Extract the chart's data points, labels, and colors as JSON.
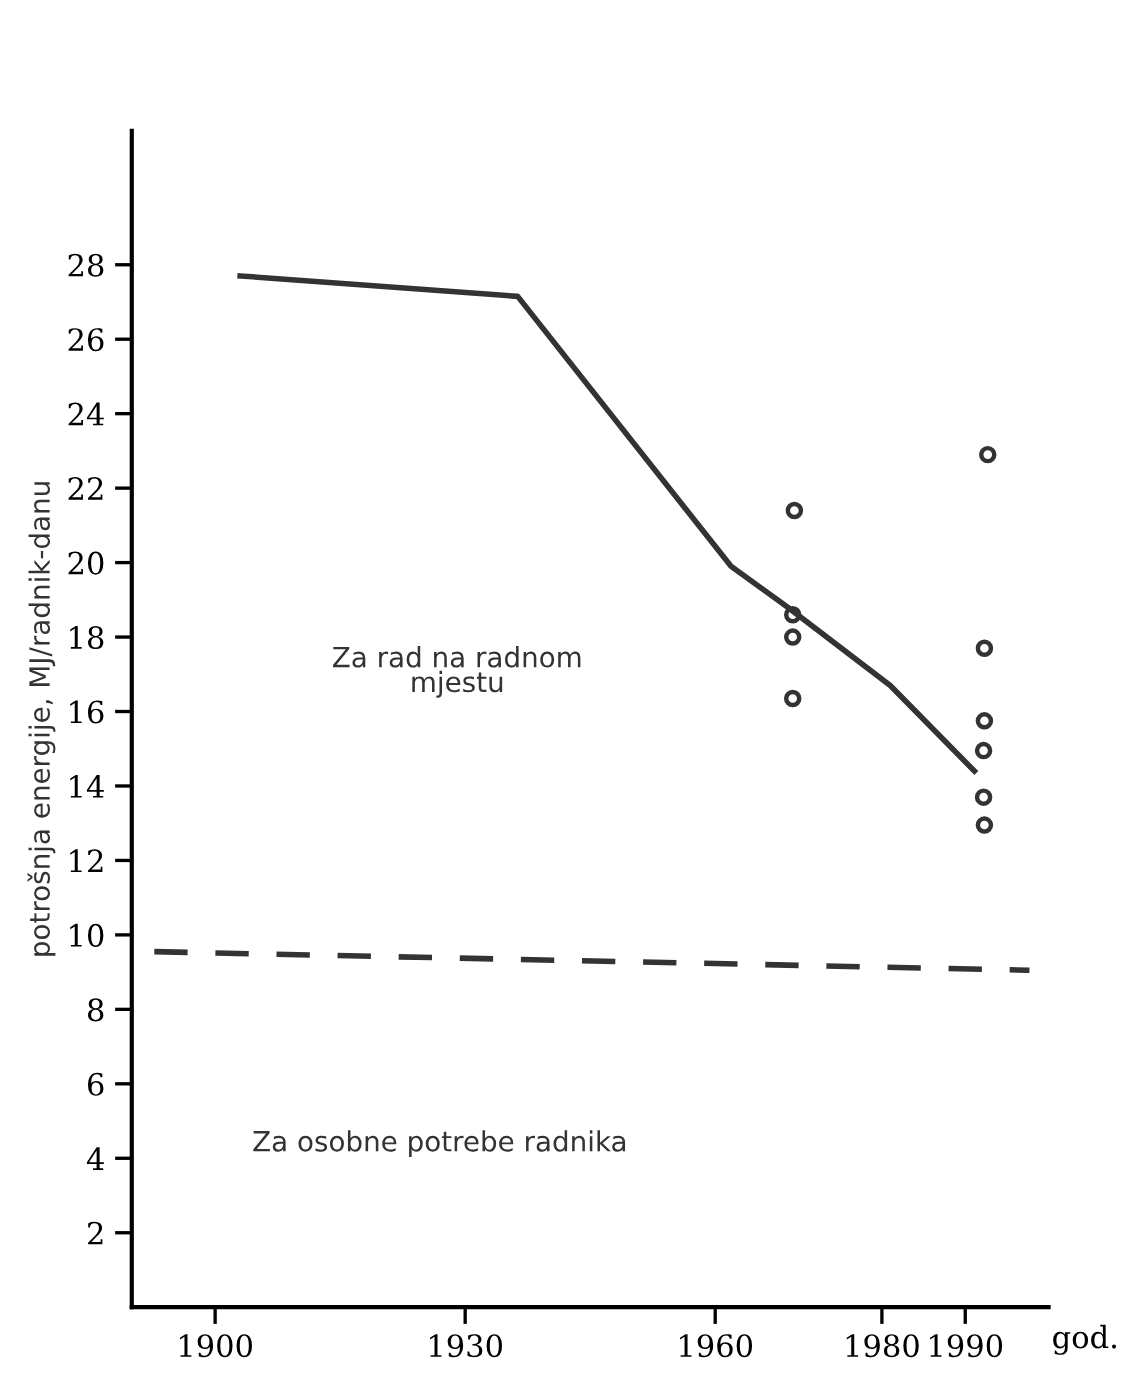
{
  "chart_data": {
    "type": "line",
    "ylabel": "potrošnja energije, MJ/radnik-danu",
    "xlabel": "god.",
    "xlim": [
      1890,
      2000
    ],
    "ylim": [
      0,
      31.6
    ],
    "xticks": [
      1900,
      1930,
      1960,
      1980,
      1990
    ],
    "yticks": [
      2,
      4,
      6,
      8,
      10,
      12,
      14,
      16,
      18,
      20,
      22,
      24,
      26,
      28
    ],
    "grid": false,
    "series": [
      {
        "color": "#333333",
        "line_style": "solid",
        "marker": "none",
        "x": [
          1903,
          1936.3,
          1961.9,
          1968.7,
          1981,
          1991.1
        ],
        "values": [
          27.7,
          27.15,
          19.9,
          18.8,
          16.7,
          14.4
        ]
      },
      {
        "color": "#333333",
        "line_style": "dashed",
        "marker": "none",
        "x": [
          1892.7,
          1997.7
        ],
        "values": [
          9.55,
          9.05
        ]
      },
      {
        "type": "scatter",
        "color": "#333333",
        "marker": "circle",
        "x": [
          1969.5,
          1969.3,
          1969.3,
          1969.3,
          1992.7,
          1992.3,
          1992.3,
          1992.2,
          1992.2,
          1992.3
        ],
        "values": [
          21.4,
          18.6,
          18.0,
          16.35,
          22.9,
          17.7,
          15.75,
          14.95,
          13.7,
          12.95
        ]
      }
    ],
    "annotations": [
      "Za rad na radnom\nmjestu",
      "Za osobne potrebe radnika"
    ]
  }
}
